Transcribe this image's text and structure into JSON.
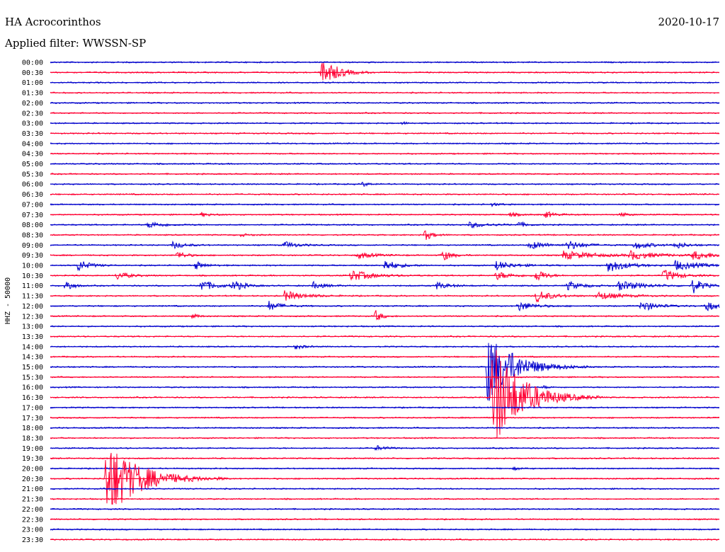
{
  "header": {
    "station": "HA Acrocorinthos",
    "date": "2020-10-17",
    "filter": "Applied filter: WWSSN-SP"
  },
  "colors": {
    "even_row": "#0000cc",
    "odd_row": "#ff0033"
  },
  "chart_data": {
    "type": "line",
    "title": "HA Acrocorinthos",
    "ylabel": "HHZ - 50000",
    "row_interval_minutes": 30,
    "tick_labels": [
      "00:00",
      "00:30",
      "01:00",
      "01:30",
      "02:00",
      "02:30",
      "03:00",
      "03:30",
      "04:00",
      "04:30",
      "05:00",
      "05:30",
      "06:00",
      "06:30",
      "07:00",
      "07:30",
      "08:00",
      "08:30",
      "09:00",
      "09:30",
      "10:00",
      "10:30",
      "11:00",
      "11:30",
      "12:00",
      "12:30",
      "13:00",
      "13:30",
      "14:00",
      "14:30",
      "15:00",
      "15:30",
      "16:00",
      "16:30",
      "17:00",
      "17:30",
      "18:00",
      "18:30",
      "19:00",
      "19:30",
      "20:00",
      "20:30",
      "21:00",
      "21:30",
      "22:00",
      "22:30",
      "23:00",
      "23:30"
    ],
    "events": [
      {
        "row": 1,
        "minute": 12.2,
        "amplitude": 22,
        "duration": 1.0
      },
      {
        "row": 6,
        "minute": 15.8,
        "amplitude": 2,
        "duration": 0.3
      },
      {
        "row": 12,
        "minute": 14.0,
        "amplitude": 3,
        "duration": 0.5
      },
      {
        "row": 14,
        "minute": 19.8,
        "amplitude": 2,
        "duration": 0.6
      },
      {
        "row": 15,
        "minute": 6.8,
        "amplitude": 3,
        "duration": 0.6
      },
      {
        "row": 15,
        "minute": 20.6,
        "amplitude": 3,
        "duration": 0.6
      },
      {
        "row": 15,
        "minute": 22.2,
        "amplitude": 5,
        "duration": 0.6
      },
      {
        "row": 15,
        "minute": 25.6,
        "amplitude": 3,
        "duration": 0.5
      },
      {
        "row": 16,
        "minute": 4.4,
        "amplitude": 5,
        "duration": 1.0
      },
      {
        "row": 16,
        "minute": 18.8,
        "amplitude": 4,
        "duration": 1.2
      },
      {
        "row": 16,
        "minute": 21.0,
        "amplitude": 4,
        "duration": 0.5
      },
      {
        "row": 17,
        "minute": 16.8,
        "amplitude": 8,
        "duration": 0.5
      },
      {
        "row": 17,
        "minute": 8.5,
        "amplitude": 2,
        "duration": 0.6
      },
      {
        "row": 18,
        "minute": 5.5,
        "amplitude": 5,
        "duration": 0.8
      },
      {
        "row": 18,
        "minute": 10.5,
        "amplitude": 5,
        "duration": 0.9
      },
      {
        "row": 18,
        "minute": 21.5,
        "amplitude": 6,
        "duration": 1.1
      },
      {
        "row": 18,
        "minute": 23.2,
        "amplitude": 7,
        "duration": 1.0
      },
      {
        "row": 18,
        "minute": 26.2,
        "amplitude": 6,
        "duration": 1.0
      },
      {
        "row": 18,
        "minute": 28.0,
        "amplitude": 5,
        "duration": 0.8
      },
      {
        "row": 19,
        "minute": 5.7,
        "amplitude": 6,
        "duration": 0.6
      },
      {
        "row": 19,
        "minute": 13.8,
        "amplitude": 5,
        "duration": 1.0
      },
      {
        "row": 19,
        "minute": 17.6,
        "amplitude": 8,
        "duration": 0.6
      },
      {
        "row": 19,
        "minute": 23.0,
        "amplitude": 6,
        "duration": 2.2
      },
      {
        "row": 19,
        "minute": 26.0,
        "amplitude": 6,
        "duration": 1.6
      },
      {
        "row": 19,
        "minute": 28.8,
        "amplitude": 6,
        "duration": 1.6
      },
      {
        "row": 20,
        "minute": 1.2,
        "amplitude": 9,
        "duration": 0.8
      },
      {
        "row": 20,
        "minute": 6.5,
        "amplitude": 6,
        "duration": 0.6
      },
      {
        "row": 20,
        "minute": 15.0,
        "amplitude": 8,
        "duration": 0.9
      },
      {
        "row": 20,
        "minute": 20.0,
        "amplitude": 6,
        "duration": 1.2
      },
      {
        "row": 20,
        "minute": 25.0,
        "amplitude": 10,
        "duration": 1.2
      },
      {
        "row": 20,
        "minute": 28.0,
        "amplitude": 7,
        "duration": 1.6
      },
      {
        "row": 21,
        "minute": 3.0,
        "amplitude": 6,
        "duration": 0.8
      },
      {
        "row": 21,
        "minute": 13.5,
        "amplitude": 8,
        "duration": 1.4
      },
      {
        "row": 21,
        "minute": 20.0,
        "amplitude": 6,
        "duration": 1.0
      },
      {
        "row": 21,
        "minute": 21.8,
        "amplitude": 10,
        "duration": 0.6
      },
      {
        "row": 21,
        "minute": 27.5,
        "amplitude": 9,
        "duration": 1.0
      },
      {
        "row": 22,
        "minute": 0.7,
        "amplitude": 11,
        "duration": 0.4
      },
      {
        "row": 22,
        "minute": 6.7,
        "amplitude": 9,
        "duration": 1.0
      },
      {
        "row": 22,
        "minute": 8.2,
        "amplitude": 8,
        "duration": 0.7
      },
      {
        "row": 22,
        "minute": 11.8,
        "amplitude": 5,
        "duration": 0.8
      },
      {
        "row": 22,
        "minute": 17.3,
        "amplitude": 5,
        "duration": 0.9
      },
      {
        "row": 22,
        "minute": 23.2,
        "amplitude": 6,
        "duration": 1.0
      },
      {
        "row": 22,
        "minute": 25.5,
        "amplitude": 7,
        "duration": 1.6
      },
      {
        "row": 22,
        "minute": 28.8,
        "amplitude": 11,
        "duration": 0.7
      },
      {
        "row": 23,
        "minute": 10.5,
        "amplitude": 7,
        "duration": 1.3
      },
      {
        "row": 23,
        "minute": 21.8,
        "amplitude": 9,
        "duration": 1.0
      },
      {
        "row": 23,
        "minute": 24.5,
        "amplitude": 6,
        "duration": 1.5
      },
      {
        "row": 24,
        "minute": 9.8,
        "amplitude": 7,
        "duration": 0.8
      },
      {
        "row": 24,
        "minute": 21.0,
        "amplitude": 7,
        "duration": 1.0
      },
      {
        "row": 24,
        "minute": 26.5,
        "amplitude": 8,
        "duration": 1.0
      },
      {
        "row": 24,
        "minute": 29.4,
        "amplitude": 9,
        "duration": 0.6
      },
      {
        "row": 25,
        "minute": 6.4,
        "amplitude": 5,
        "duration": 0.3
      },
      {
        "row": 25,
        "minute": 14.6,
        "amplitude": 9,
        "duration": 0.4
      },
      {
        "row": 28,
        "minute": 11.0,
        "amplitude": 4,
        "duration": 0.5
      },
      {
        "row": 30,
        "minute": 19.6,
        "amplitude": 55,
        "duration": 1.8
      },
      {
        "row": 32,
        "minute": 22.1,
        "amplitude": 2,
        "duration": 0.4
      },
      {
        "row": 33,
        "minute": 19.8,
        "amplitude": 80,
        "duration": 2.0
      },
      {
        "row": 38,
        "minute": 14.6,
        "amplitude": 4,
        "duration": 0.6
      },
      {
        "row": 40,
        "minute": 20.8,
        "amplitude": 2,
        "duration": 0.5
      },
      {
        "row": 41,
        "minute": 2.5,
        "amplitude": 58,
        "duration": 2.2
      }
    ]
  }
}
